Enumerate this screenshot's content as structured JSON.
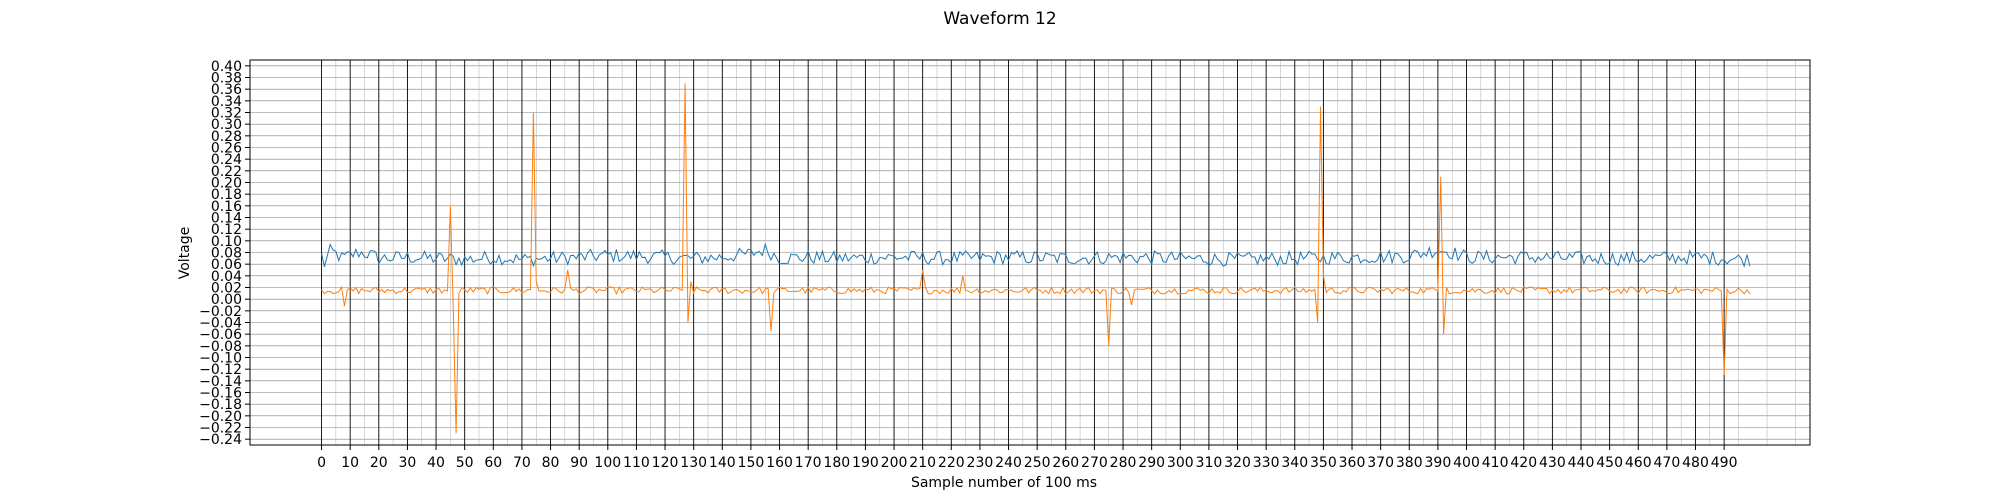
{
  "chart_data": {
    "type": "line",
    "title": "Waveform 12",
    "xlabel": "Sample number of 100 ms",
    "ylabel": "Voltage",
    "xlim": [
      -25,
      520
    ],
    "ylim": [
      -0.25,
      0.41
    ],
    "x_ticks": [
      0,
      10,
      20,
      30,
      40,
      50,
      60,
      70,
      80,
      90,
      100,
      110,
      120,
      130,
      140,
      150,
      160,
      170,
      180,
      190,
      200,
      210,
      220,
      230,
      240,
      250,
      260,
      270,
      280,
      290,
      300,
      310,
      320,
      330,
      340,
      350,
      360,
      370,
      380,
      390,
      400,
      410,
      420,
      430,
      440,
      450,
      460,
      470,
      480,
      490
    ],
    "y_ticks": [
      -0.24,
      -0.22,
      -0.2,
      -0.18,
      -0.16,
      -0.14,
      -0.12,
      -0.1,
      -0.08,
      -0.06,
      -0.04,
      -0.02,
      0.0,
      0.02,
      0.04,
      0.06,
      0.08,
      0.1,
      0.12,
      0.14,
      0.16,
      0.18,
      0.2,
      0.22,
      0.24,
      0.26,
      0.28,
      0.3,
      0.32,
      0.34,
      0.36,
      0.38,
      0.4
    ],
    "y_tick_labels": [
      "−0.24",
      "−0.22",
      "−0.20",
      "−0.18",
      "−0.16",
      "−0.14",
      "−0.12",
      "−0.10",
      "−0.08",
      "−0.06",
      "−0.04",
      "−0.02",
      "0.00",
      "0.02",
      "0.04",
      "0.06",
      "0.08",
      "0.10",
      "0.12",
      "0.14",
      "0.16",
      "0.18",
      "0.20",
      "0.22",
      "0.24",
      "0.26",
      "0.28",
      "0.30",
      "0.32",
      "0.34",
      "0.36",
      "0.38",
      "0.40"
    ],
    "grid": true,
    "series": [
      {
        "color": "#1f77b4",
        "baseline": 0.07,
        "noise_amplitude": 0.012,
        "x_range": [
          0,
          499
        ],
        "values": [
          [
            0,
            0.075
          ],
          [
            1,
            0.06
          ],
          [
            3,
            0.082
          ],
          [
            5,
            0.078
          ],
          [
            7,
            0.07
          ],
          [
            10,
            0.075
          ],
          [
            13,
            0.08
          ],
          [
            16,
            0.078
          ],
          [
            20,
            0.07
          ],
          [
            30,
            0.072
          ],
          [
            40,
            0.07
          ],
          [
            50,
            0.068
          ],
          [
            60,
            0.072
          ],
          [
            70,
            0.068
          ],
          [
            80,
            0.07
          ],
          [
            90,
            0.072
          ],
          [
            100,
            0.075
          ],
          [
            110,
            0.074
          ],
          [
            120,
            0.072
          ],
          [
            130,
            0.07
          ],
          [
            140,
            0.072
          ],
          [
            150,
            0.078
          ],
          [
            155,
            0.085
          ],
          [
            160,
            0.07
          ],
          [
            170,
            0.072
          ],
          [
            180,
            0.07
          ],
          [
            200,
            0.072
          ],
          [
            220,
            0.07
          ],
          [
            240,
            0.072
          ],
          [
            260,
            0.07
          ],
          [
            280,
            0.072
          ],
          [
            300,
            0.07
          ],
          [
            320,
            0.068
          ],
          [
            340,
            0.07
          ],
          [
            360,
            0.072
          ],
          [
            380,
            0.074
          ],
          [
            390,
            0.085
          ],
          [
            395,
            0.08
          ],
          [
            400,
            0.072
          ],
          [
            420,
            0.072
          ],
          [
            440,
            0.07
          ],
          [
            460,
            0.07
          ],
          [
            480,
            0.072
          ],
          [
            499,
            0.068
          ]
        ]
      },
      {
        "color": "#ff7f0e",
        "baseline": 0.015,
        "noise_amplitude": 0.006,
        "x_range": [
          0,
          499
        ],
        "spikes": [
          [
            8,
            -0.012
          ],
          [
            45,
            0.16
          ],
          [
            46,
            -0.015
          ],
          [
            47,
            -0.23
          ],
          [
            48,
            0.01
          ],
          [
            74,
            0.32
          ],
          [
            75,
            0.03
          ],
          [
            86,
            0.05
          ],
          [
            127,
            0.37
          ],
          [
            128,
            -0.04
          ],
          [
            129,
            0.03
          ],
          [
            157,
            -0.055
          ],
          [
            210,
            0.05
          ],
          [
            224,
            0.04
          ],
          [
            275,
            -0.08
          ],
          [
            283,
            -0.01
          ],
          [
            348,
            -0.04
          ],
          [
            349,
            0.33
          ],
          [
            350,
            0.04
          ],
          [
            391,
            0.21
          ],
          [
            392,
            -0.06
          ],
          [
            393,
            0.02
          ],
          [
            490,
            -0.13
          ]
        ]
      }
    ]
  }
}
